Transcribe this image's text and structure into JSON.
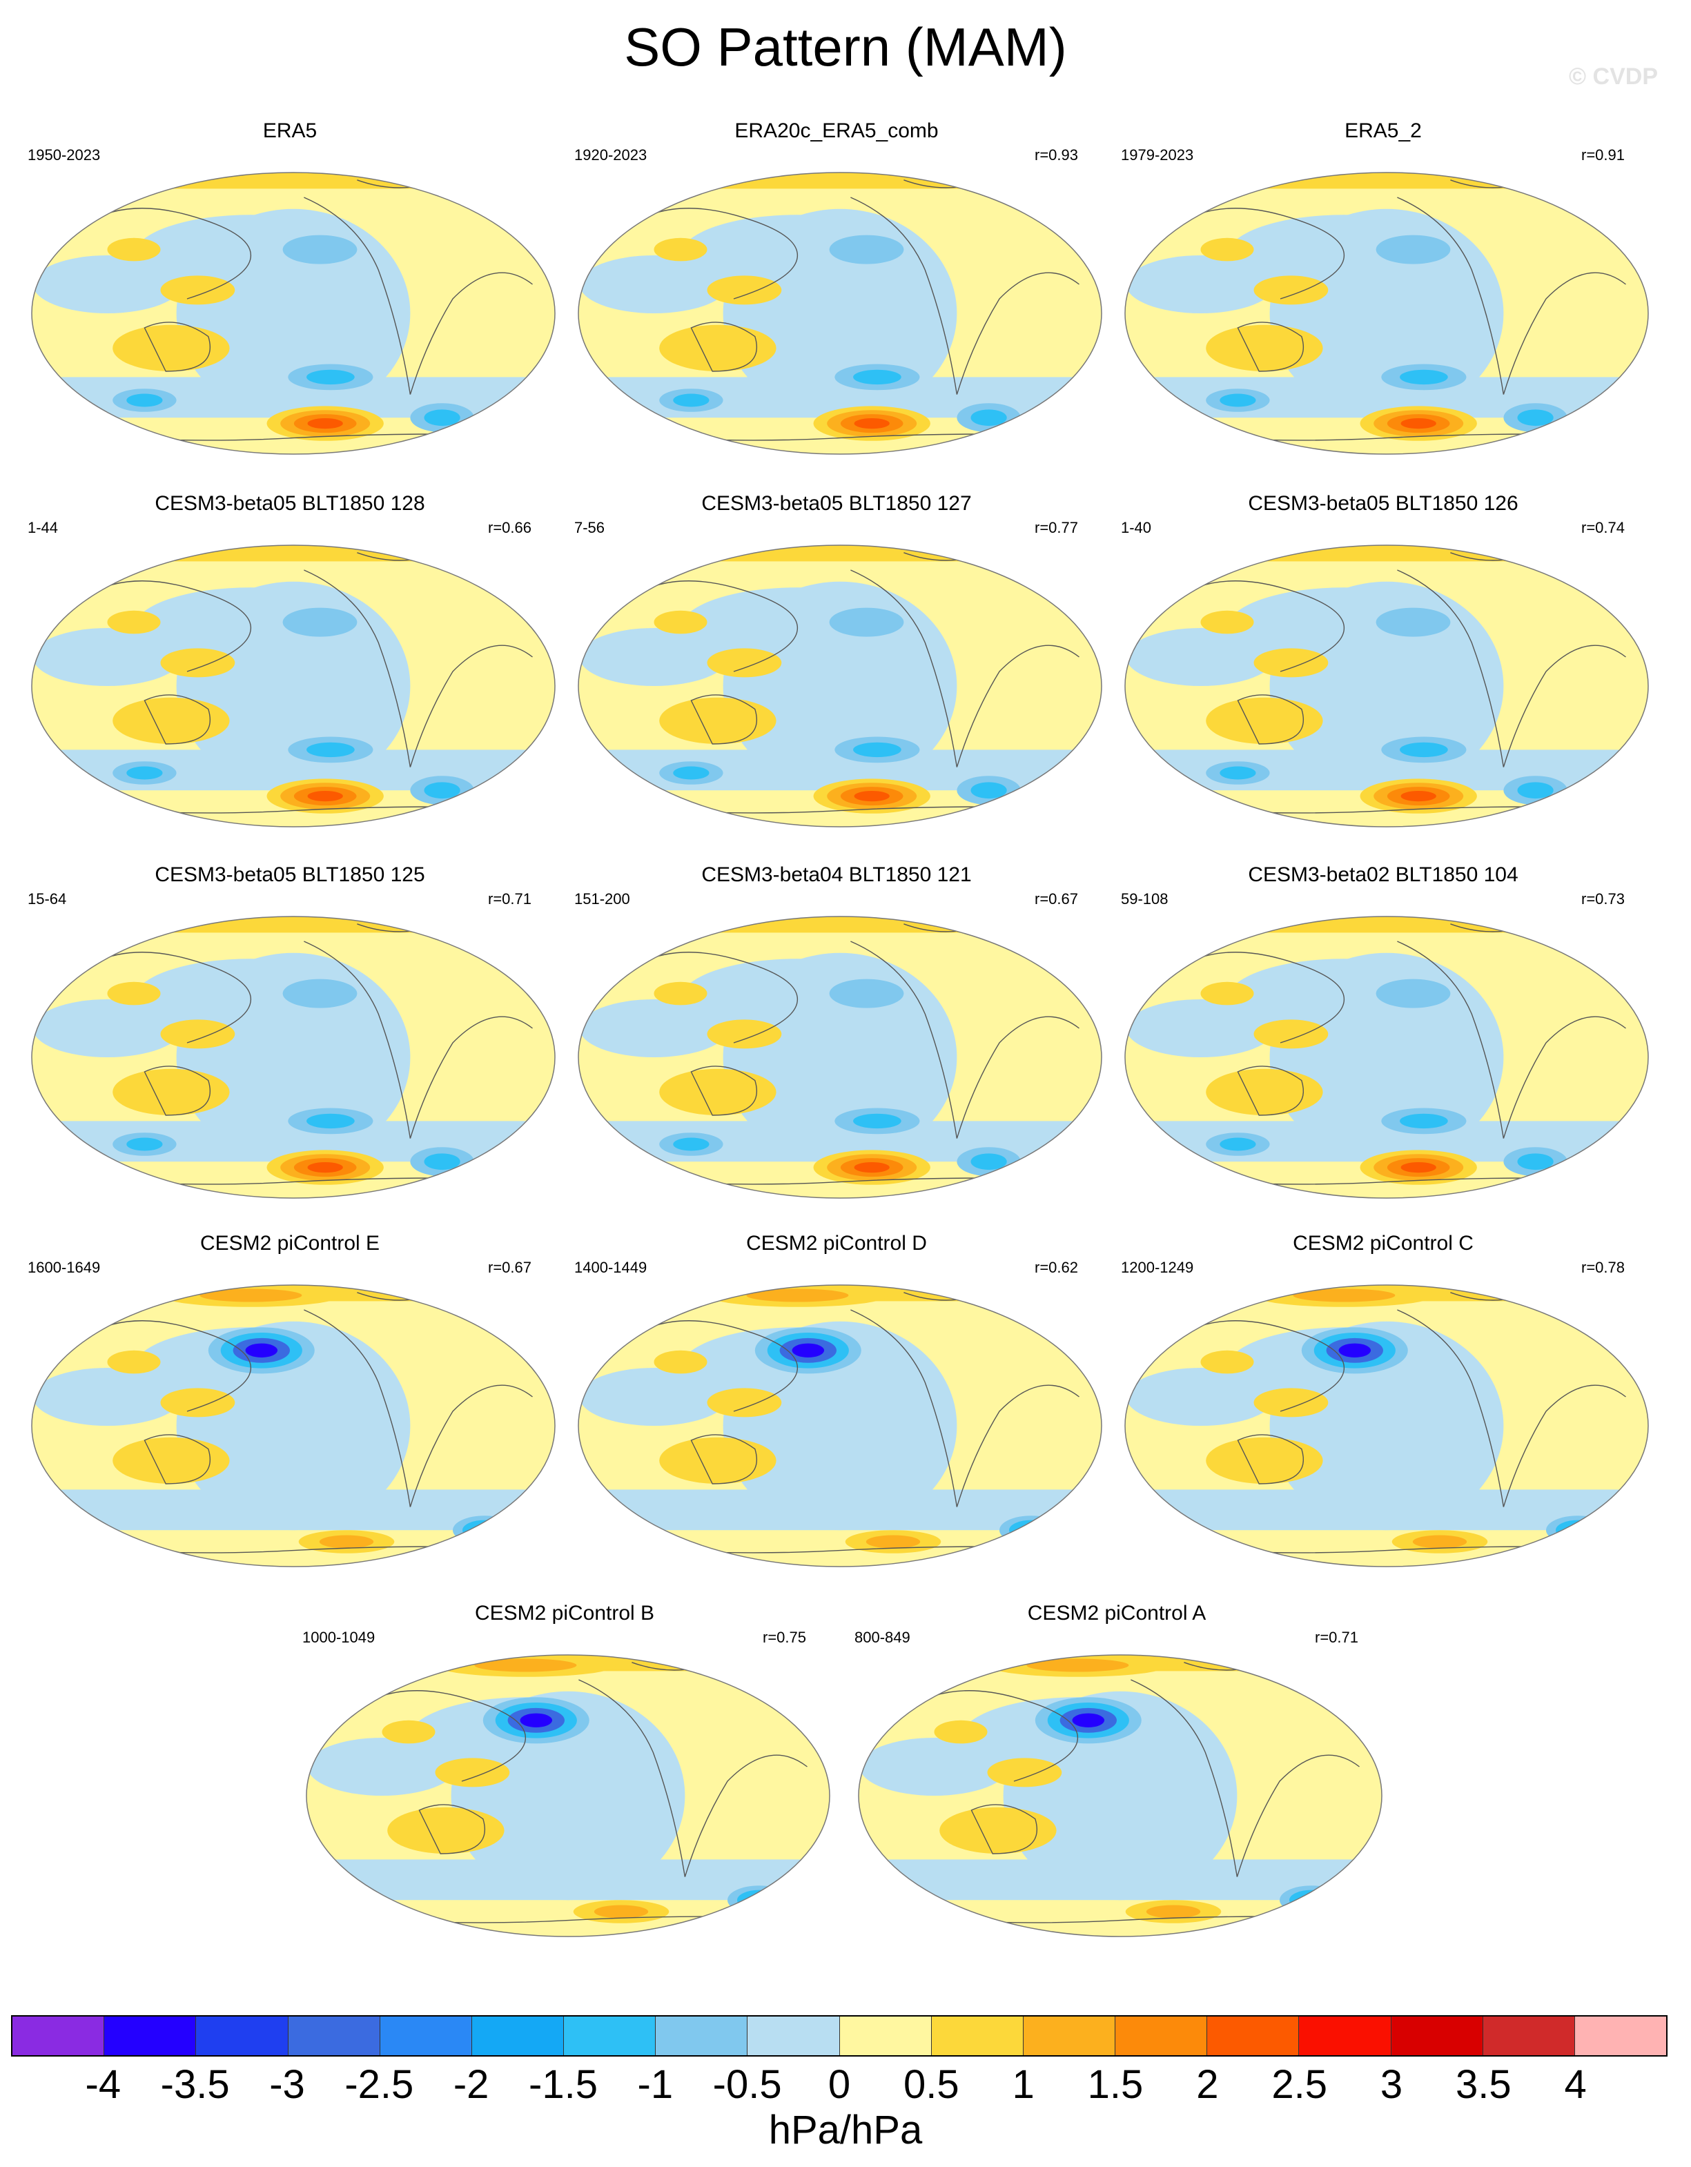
{
  "title": "SO Pattern (MAM)",
  "watermark": "© CVDP",
  "panels": [
    {
      "title": "ERA5",
      "years": "1950-2023",
      "r": ""
    },
    {
      "title": "ERA20c_ERA5_comb",
      "years": "1920-2023",
      "r": "r=0.93"
    },
    {
      "title": "ERA5_2",
      "years": "1979-2023",
      "r": "r=0.91"
    },
    {
      "title": "CESM3-beta05 BLT1850 128",
      "years": "1-44",
      "r": "r=0.66"
    },
    {
      "title": "CESM3-beta05 BLT1850 127",
      "years": "7-56",
      "r": "r=0.77"
    },
    {
      "title": "CESM3-beta05 BLT1850 126",
      "years": "1-40",
      "r": "r=0.74"
    },
    {
      "title": "CESM3-beta05 BLT1850 125",
      "years": "15-64",
      "r": "r=0.71"
    },
    {
      "title": "CESM3-beta04 BLT1850 121",
      "years": "151-200",
      "r": "r=0.67"
    },
    {
      "title": "CESM3-beta02 BLT1850 104",
      "years": "59-108",
      "r": "r=0.73"
    },
    {
      "title": "CESM2 piControl E",
      "years": "1600-1649",
      "r": "r=0.67"
    },
    {
      "title": "CESM2 piControl D",
      "years": "1400-1449",
      "r": "r=0.62"
    },
    {
      "title": "CESM2 piControl C",
      "years": "1200-1249",
      "r": "r=0.78"
    },
    {
      "title": "CESM2 piControl B",
      "years": "1000-1049",
      "r": "r=0.75"
    },
    {
      "title": "CESM2 piControl A",
      "years": "800-849",
      "r": "r=0.71"
    }
  ],
  "colorbar": {
    "colors": [
      "#8a2be2",
      "#2400ff",
      "#1f3ff0",
      "#3b6be0",
      "#2a88f5",
      "#14a8f5",
      "#2ec0f5",
      "#80c8ee",
      "#b8def2",
      "#fff7a0",
      "#fcd83a",
      "#fcb01e",
      "#fc8a0a",
      "#fc5a00",
      "#fa1000",
      "#d80000",
      "#d02a2a",
      "#ffb3b3"
    ],
    "tick_labels": [
      "-4",
      "-3.5",
      "-3",
      "-2.5",
      "-2",
      "-1.5",
      "-1",
      "-0.5",
      "0",
      "0.5",
      "1",
      "1.5",
      "2",
      "2.5",
      "3",
      "3.5",
      "4"
    ],
    "units": "hPa/hPa"
  },
  "map_colors": {
    "ocean_neutral_pos": "#fff7a0",
    "ocean_neutral_neg": "#b8def2",
    "pos1": "#fcd83a",
    "pos2": "#fcb01e",
    "pos3": "#fc8a0a",
    "pos4": "#fc5a00",
    "pos5": "#fa1000",
    "neg1": "#80c8ee",
    "neg2": "#2ec0f5",
    "neg3": "#14a8f5",
    "neg4": "#3b6be0",
    "neg5": "#2400ff",
    "coast": "#555555"
  }
}
